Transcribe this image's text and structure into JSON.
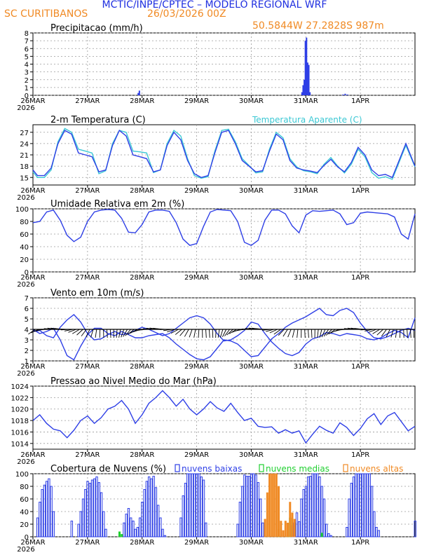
{
  "header": {
    "title": "MCTIC/INPE/CPTEC – MODELO REGIONAL WRF",
    "station": "SC CURITIBANOS",
    "run_date": "26/03/2026 00Z",
    "coords": "50.5844W 27.2828S 987m"
  },
  "colors": {
    "blue": "#2e3fe6",
    "cyan": "#3cc8d4",
    "orange": "#f08a24",
    "green": "#1fcf2f",
    "axis": "#000000",
    "grid": "#9a9a9a"
  },
  "x_axis": {
    "hours_start": 0,
    "hours_end": 168,
    "ticks": [
      {
        "hour": 0,
        "label": "26MAR",
        "year": "2026"
      },
      {
        "hour": 24,
        "label": "27MAR"
      },
      {
        "hour": 48,
        "label": "28MAR"
      },
      {
        "hour": 72,
        "label": "29MAR"
      },
      {
        "hour": 96,
        "label": "30MAR"
      },
      {
        "hour": 120,
        "label": "31MAR"
      },
      {
        "hour": 144,
        "label": "1APR"
      }
    ]
  },
  "chart_data": [
    {
      "id": "precip",
      "type": "bar",
      "title": "Precipitacao (mm/h)",
      "ylim": [
        0,
        8
      ],
      "yticks": [
        0,
        1,
        2,
        3,
        4,
        5,
        6,
        7,
        8
      ],
      "x_hours": [
        46,
        46.5,
        118,
        118.5,
        119,
        119.5,
        120,
        120.5,
        121,
        121.5,
        136,
        137,
        138
      ],
      "values": [
        0.3,
        0.6,
        0.4,
        1.3,
        2.0,
        7.0,
        7.4,
        4.2,
        3.9,
        0.4,
        0.1,
        0.2,
        0.1
      ]
    },
    {
      "id": "temp",
      "type": "line",
      "title": "2-m Temperatura (C)",
      "legend": "Temperatura Aparente (C)",
      "ylim": [
        13,
        29
      ],
      "yticks": [
        15,
        18,
        21,
        24,
        27
      ],
      "series": [
        {
          "name": "temperature",
          "x": [
            0,
            2,
            5,
            8,
            11,
            14,
            17,
            20,
            23,
            26,
            29,
            32,
            35,
            38,
            41,
            44,
            47,
            50,
            53,
            56,
            59,
            62,
            65,
            68,
            71,
            74,
            77,
            80,
            83,
            86,
            89,
            92,
            95,
            98,
            101,
            104,
            107,
            110,
            113,
            116,
            119,
            122,
            125,
            128,
            131,
            134,
            137,
            140,
            143,
            146,
            149,
            152,
            155,
            158,
            161,
            164,
            168
          ],
          "values": [
            17,
            15.5,
            15.5,
            17.5,
            24,
            27.5,
            26.5,
            21.5,
            21,
            20.5,
            16.5,
            17,
            23.5,
            27.5,
            26,
            21,
            20.5,
            20,
            16.5,
            17,
            23.5,
            27,
            25,
            19.5,
            16,
            15,
            15.5,
            21.5,
            27,
            27.5,
            24,
            19.5,
            18,
            16.5,
            16.8,
            22,
            26.5,
            25,
            19.5,
            17.5,
            17,
            16.7,
            16.3,
            18.2,
            19.8,
            17.8,
            16.5,
            19,
            23,
            21,
            17,
            15.5,
            15.8,
            15,
            19.5,
            24,
            18
          ]
        },
        {
          "name": "apparent",
          "x": [
            0,
            2,
            5,
            8,
            11,
            14,
            17,
            20,
            23,
            26,
            29,
            32,
            35,
            38,
            41,
            44,
            47,
            50,
            53,
            56,
            59,
            62,
            65,
            68,
            71,
            74,
            77,
            80,
            83,
            86,
            89,
            92,
            95,
            98,
            101,
            104,
            107,
            110,
            113,
            116,
            119,
            122,
            125,
            128,
            131,
            134,
            137,
            140,
            143,
            146,
            149,
            152,
            155,
            158,
            161,
            164,
            168
          ],
          "values": [
            16.5,
            15,
            15,
            17,
            24.5,
            28,
            27,
            22.5,
            22,
            21.5,
            16,
            16.8,
            24,
            27.5,
            27,
            22,
            21.8,
            21.5,
            16.3,
            17,
            24,
            27.5,
            26,
            20,
            15.5,
            14.8,
            15.2,
            22,
            27.5,
            27.8,
            24.5,
            20,
            18.2,
            16.2,
            16.5,
            22.5,
            27,
            25.5,
            20,
            17.8,
            16.8,
            16.5,
            16,
            18.5,
            20.3,
            18,
            16.2,
            18.5,
            22.5,
            20.5,
            16.3,
            14.8,
            15.2,
            14.5,
            19,
            23.5,
            17.8
          ]
        }
      ]
    },
    {
      "id": "humidity",
      "type": "line",
      "title": "Umidade Relativa em 2m (%)",
      "ylim": [
        0,
        100
      ],
      "yticks": [
        0,
        20,
        40,
        60,
        80,
        100
      ],
      "series": [
        {
          "name": "rh",
          "x": [
            0,
            3,
            6,
            9,
            12,
            15,
            18,
            21,
            24,
            27,
            30,
            33,
            36,
            39,
            42,
            45,
            48,
            51,
            54,
            57,
            60,
            63,
            66,
            69,
            72,
            75,
            78,
            81,
            84,
            87,
            90,
            93,
            96,
            99,
            102,
            105,
            108,
            111,
            114,
            117,
            120,
            123,
            126,
            129,
            132,
            135,
            138,
            141,
            144,
            147,
            150,
            153,
            156,
            159,
            162,
            165,
            168
          ],
          "values": [
            78,
            80,
            95,
            98,
            82,
            58,
            48,
            55,
            80,
            95,
            98,
            99,
            98,
            85,
            63,
            62,
            75,
            95,
            98,
            98,
            96,
            78,
            52,
            42,
            45,
            72,
            95,
            99,
            98,
            97,
            80,
            47,
            42,
            50,
            82,
            98,
            98,
            92,
            73,
            62,
            90,
            97,
            96,
            97,
            98,
            92,
            75,
            78,
            93,
            95,
            94,
            93,
            92,
            87,
            60,
            52,
            92
          ]
        }
      ]
    },
    {
      "id": "wind",
      "type": "line",
      "title": "Vento em 10m (m/s)",
      "ylim": [
        1,
        7
      ],
      "yticks": [
        1,
        2,
        3,
        4,
        5,
        6,
        7
      ],
      "series": [
        {
          "name": "speed_a",
          "x": [
            0,
            3,
            6,
            9,
            12,
            15,
            18,
            21,
            24,
            27,
            30,
            33,
            36,
            39,
            42,
            45,
            48,
            51,
            54,
            57,
            60,
            63,
            66,
            69,
            72,
            75,
            78,
            81,
            84,
            87,
            90,
            93,
            96,
            99,
            102,
            105,
            108,
            111,
            114,
            117,
            120,
            123,
            126,
            129,
            132,
            135,
            138,
            141,
            144,
            147,
            150,
            153,
            156,
            159,
            162,
            165,
            168
          ],
          "values": [
            4,
            3.6,
            3.8,
            4.1,
            3,
            1.5,
            1.1,
            2.4,
            3.5,
            4.1,
            4.1,
            3.6,
            3.4,
            3.8,
            3.5,
            3.2,
            3.2,
            3.4,
            3.5,
            3.6,
            3.2,
            2.6,
            2.1,
            1.6,
            1.2,
            1.1,
            1.4,
            2.2,
            3,
            2.9,
            2.6,
            2,
            1.4,
            1.5,
            2.3,
            3.1,
            3.6,
            4.2,
            4.6,
            4.9,
            5.2,
            5.6,
            6,
            5.4,
            5.3,
            5.8,
            6,
            5.6,
            4.6,
            3.8,
            3.2,
            3.1,
            3.3,
            3.6,
            3.9,
            4.1,
            3.9
          ]
        },
        {
          "name": "speed_b",
          "x": [
            0,
            3,
            6,
            9,
            12,
            15,
            18,
            21,
            24,
            27,
            30,
            33,
            36,
            39,
            42,
            45,
            48,
            51,
            54,
            57,
            60,
            63,
            66,
            69,
            72,
            75,
            78,
            81,
            84,
            87,
            90,
            93,
            96,
            99,
            102,
            105,
            108,
            111,
            114,
            117,
            120,
            123,
            126,
            129,
            132,
            135,
            138,
            141,
            144,
            147,
            150,
            153,
            156,
            159,
            162,
            165,
            168
          ],
          "values": [
            3.8,
            3.9,
            3.4,
            3.2,
            4.2,
            4.9,
            5.4,
            4.7,
            3.6,
            3,
            3.1,
            3.5,
            3.8,
            3.5,
            3.6,
            3.9,
            4.2,
            4,
            3.7,
            3.4,
            3.6,
            4.1,
            4.6,
            5.1,
            5.3,
            5.1,
            4.5,
            3.6,
            2.9,
            3,
            3.4,
            3.9,
            4.7,
            4.5,
            3.6,
            2.8,
            2.2,
            1.7,
            1.5,
            1.8,
            2.6,
            3.1,
            3.3,
            3.7,
            3.6,
            3.4,
            3.6,
            3.5,
            3.4,
            3.1,
            3,
            3.2,
            3.6,
            3.9,
            3.7,
            3.2,
            5.1
          ]
        }
      ]
    },
    {
      "id": "pressure",
      "type": "line",
      "title": "Pressao ao Nivel Medio do Mar (hPa)",
      "ylim": [
        1013,
        1024
      ],
      "yticks": [
        1014,
        1016,
        1018,
        1020,
        1022,
        1024
      ],
      "series": [
        {
          "name": "mslp",
          "x": [
            0,
            3,
            6,
            9,
            12,
            15,
            18,
            21,
            24,
            27,
            30,
            33,
            36,
            39,
            42,
            45,
            48,
            51,
            54,
            57,
            60,
            63,
            66,
            69,
            72,
            75,
            78,
            81,
            84,
            87,
            90,
            93,
            96,
            99,
            102,
            105,
            108,
            111,
            114,
            117,
            120,
            123,
            126,
            129,
            132,
            135,
            138,
            141,
            144,
            147,
            150,
            153,
            156,
            159,
            162,
            165,
            168
          ],
          "values": [
            1018,
            1019,
            1017.5,
            1016.5,
            1016.2,
            1015,
            1016.3,
            1018,
            1018.8,
            1017.5,
            1018.5,
            1020,
            1020.5,
            1021.5,
            1020,
            1017.5,
            1019,
            1021,
            1022,
            1023.2,
            1022,
            1020.5,
            1021.7,
            1020,
            1019,
            1020,
            1021.3,
            1020.2,
            1019.6,
            1021,
            1019.4,
            1018,
            1018.4,
            1017,
            1016.8,
            1016.9,
            1015.8,
            1016.4,
            1015.8,
            1016.2,
            1014.1,
            1015.6,
            1017,
            1016.3,
            1015.8,
            1017.6,
            1016.8,
            1015.4,
            1016.6,
            1018.3,
            1019.2,
            1017.3,
            1018.8,
            1019.4,
            1017.8,
            1016.2,
            1017
          ]
        }
      ]
    },
    {
      "id": "clouds",
      "type": "bar",
      "title": "Cobertura de Nuvens (%)",
      "legend": [
        "nuvens baixas",
        "nuvens medias",
        "nuvens altas"
      ],
      "ylim": [
        0,
        100
      ],
      "yticks": [
        0,
        20,
        40,
        60,
        80,
        100
      ],
      "series": [
        {
          "name": "nuvens baixas",
          "x": [
            2,
            3,
            4,
            5,
            6,
            7,
            8,
            9,
            17,
            20,
            21,
            22,
            23,
            24,
            25,
            26,
            27,
            28,
            29,
            30,
            31,
            32,
            40,
            41,
            42,
            43,
            44,
            45,
            46,
            47,
            48,
            49,
            50,
            51,
            52,
            53,
            54,
            55,
            56,
            57,
            58,
            65,
            66,
            67,
            68,
            69,
            70,
            71,
            72,
            73,
            74,
            75,
            76,
            90,
            91,
            92,
            93,
            94,
            95,
            96,
            97,
            98,
            99,
            100,
            101,
            114,
            115,
            116,
            117,
            118,
            119,
            120,
            121,
            122,
            123,
            124,
            125,
            126,
            127,
            128,
            129,
            130,
            131,
            138,
            139,
            140,
            141,
            142,
            143,
            144,
            145,
            146,
            147,
            148,
            149,
            150,
            151,
            152,
            168
          ],
          "values": [
            30,
            55,
            75,
            82,
            88,
            92,
            80,
            40,
            25,
            20,
            40,
            60,
            75,
            88,
            85,
            90,
            92,
            95,
            86,
            70,
            40,
            12,
            22,
            36,
            45,
            30,
            25,
            12,
            15,
            30,
            55,
            75,
            88,
            95,
            92,
            96,
            78,
            50,
            30,
            12,
            2,
            30,
            65,
            85,
            100,
            100,
            100,
            100,
            100,
            100,
            95,
            90,
            22,
            20,
            55,
            80,
            98,
            96,
            96,
            100,
            100,
            98,
            86,
            60,
            22,
            18,
            22,
            38,
            24,
            60,
            75,
            80,
            95,
            96,
            100,
            100,
            100,
            95,
            80,
            60,
            20,
            5,
            2,
            15,
            60,
            85,
            95,
            100,
            100,
            100,
            100,
            100,
            100,
            100,
            80,
            40,
            15,
            10,
            25
          ]
        },
        {
          "name": "nuvens medias",
          "x": [
            38,
            39,
            108,
            112,
            113,
            127
          ],
          "values": [
            8,
            4,
            12,
            10,
            30,
            6
          ]
        },
        {
          "name": "nuvens altas",
          "x": [
            102,
            103,
            104,
            105,
            106,
            107,
            108,
            109,
            110,
            111,
            112,
            113,
            114,
            115
          ],
          "values": [
            28,
            70,
            100,
            100,
            100,
            100,
            80,
            25,
            10,
            25,
            22,
            55,
            38,
            28
          ]
        }
      ]
    }
  ]
}
